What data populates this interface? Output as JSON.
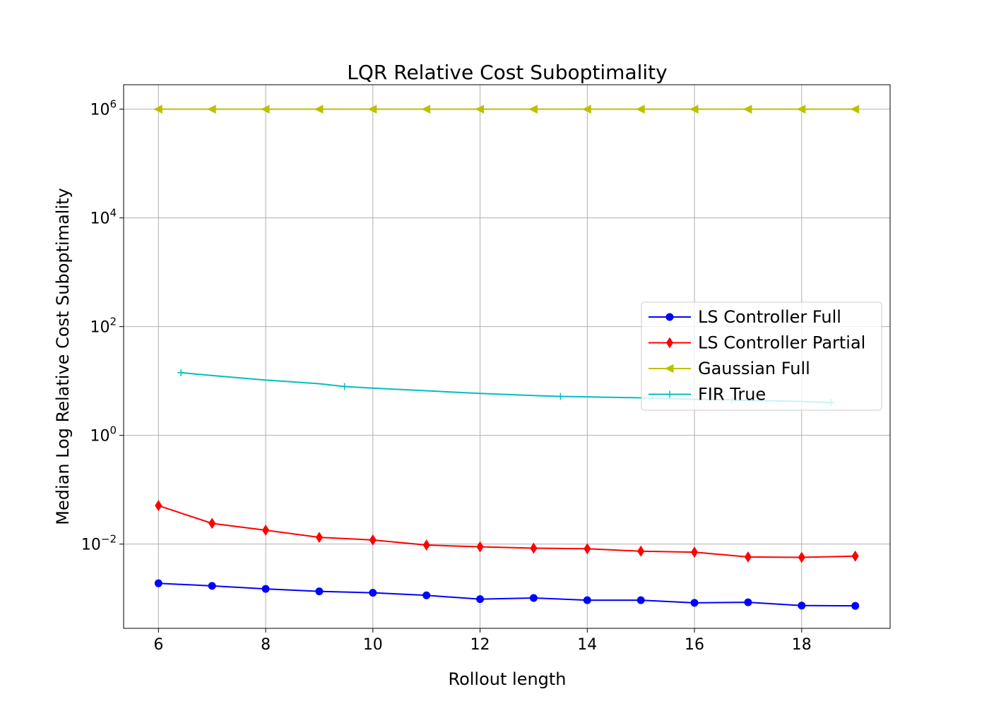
{
  "chart_data": {
    "type": "line",
    "title": "LQR Relative Cost Suboptimality",
    "xlabel": "Rollout length",
    "ylabel": "Median Log Relative Cost Suboptimality",
    "xlim": [
      5.35,
      19.65
    ],
    "yscale": "log",
    "ylim_log10": [
      -3.55,
      6.45
    ],
    "xticks": [
      6,
      8,
      10,
      12,
      14,
      16,
      18
    ],
    "yticks": [
      {
        "exp": -2,
        "base": "10",
        "sup": "−2"
      },
      {
        "exp": 0,
        "base": "10",
        "sup": "0"
      },
      {
        "exp": 2,
        "base": "10",
        "sup": "2"
      },
      {
        "exp": 4,
        "base": "10",
        "sup": "4"
      },
      {
        "exp": 6,
        "base": "10",
        "sup": "6"
      }
    ],
    "grid": true,
    "legend_position": "center-right",
    "series": [
      {
        "name": "LS Controller Full",
        "color": "#0000ff",
        "marker": "circle",
        "x": [
          6,
          7,
          8,
          9,
          10,
          11,
          12,
          13,
          14,
          15,
          16,
          17,
          18,
          19
        ],
        "y": [
          0.0019,
          0.0017,
          0.0015,
          0.00135,
          0.00127,
          0.00114,
          0.00097,
          0.00102,
          0.00093,
          0.00093,
          0.00083,
          0.00085,
          0.00074,
          0.00073
        ]
      },
      {
        "name": "LS Controller Partial",
        "color": "#ff0000",
        "marker": "thin_diamond",
        "x": [
          6,
          7,
          8,
          9,
          10,
          11,
          12,
          13,
          14,
          15,
          16,
          17,
          18,
          19
        ],
        "y": [
          0.051,
          0.024,
          0.018,
          0.0133,
          0.0119,
          0.0096,
          0.0089,
          0.0084,
          0.0082,
          0.0074,
          0.0071,
          0.0058,
          0.0057,
          0.006
        ]
      },
      {
        "name": "Gaussian Full",
        "color": "#bfbf00",
        "marker": "triangle_left",
        "x": [
          6,
          7,
          8,
          9,
          10,
          11,
          12,
          13,
          14,
          15,
          16,
          17,
          18,
          19
        ],
        "y": [
          1000000,
          1000000,
          1000000,
          1000000,
          1000000,
          1000000,
          1000000,
          1000000,
          1000000,
          1000000,
          1000000,
          1000000,
          1000000,
          1000000
        ]
      },
      {
        "name": "FIR True",
        "color": "#00bfbf",
        "marker": "plus",
        "x": [
          6.42,
          7,
          8,
          9,
          9.47,
          10,
          11,
          12,
          13,
          13.5,
          14,
          15,
          16,
          16.7,
          17,
          18,
          18.55
        ],
        "y": [
          14.2,
          12.6,
          10.4,
          8.9,
          7.9,
          7.4,
          6.6,
          5.9,
          5.4,
          5.2,
          5.1,
          4.9,
          4.6,
          4.5,
          4.4,
          4.2,
          4.0
        ],
        "marker_indices": [
          0,
          4,
          9,
          13,
          16
        ]
      }
    ]
  }
}
